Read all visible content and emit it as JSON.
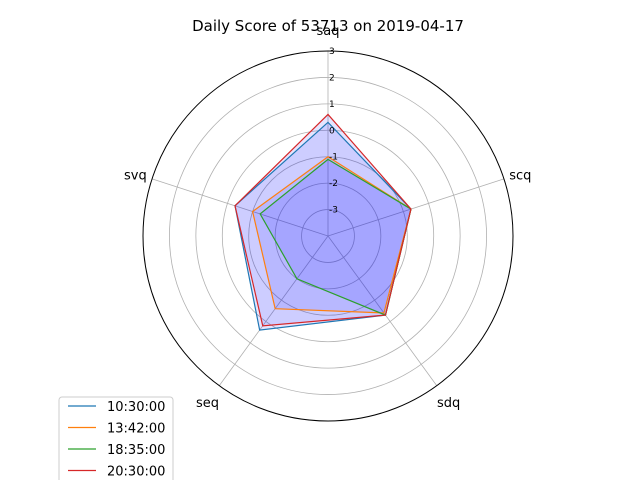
{
  "chart_data": {
    "type": "radar",
    "title": "Daily Score of 53713 on 2019-04-17",
    "axes": [
      "saq",
      "scq",
      "sdq",
      "seq",
      "svq"
    ],
    "r_ticks": [
      -3,
      -2,
      -1,
      0,
      1,
      2,
      3
    ],
    "rlim": [
      -4,
      3
    ],
    "series": [
      {
        "name": "10:30:00",
        "color": "#1f77b4",
        "values": [
          0.3,
          -0.7,
          -0.3,
          0.4,
          -0.3
        ]
      },
      {
        "name": "13:42:00",
        "color": "#ff7f0e",
        "values": [
          -1.0,
          -0.7,
          -0.4,
          -0.6,
          -1.0
        ]
      },
      {
        "name": "18:35:00",
        "color": "#2ca02c",
        "values": [
          -1.1,
          -0.7,
          -0.3,
          -2.0,
          -1.3
        ]
      },
      {
        "name": "20:30:00",
        "color": "#d62728",
        "values": [
          0.6,
          -0.7,
          -0.3,
          0.2,
          -0.3
        ]
      }
    ],
    "fill_color": "#0000ff",
    "legend_position": "lower-left",
    "grid": true
  }
}
